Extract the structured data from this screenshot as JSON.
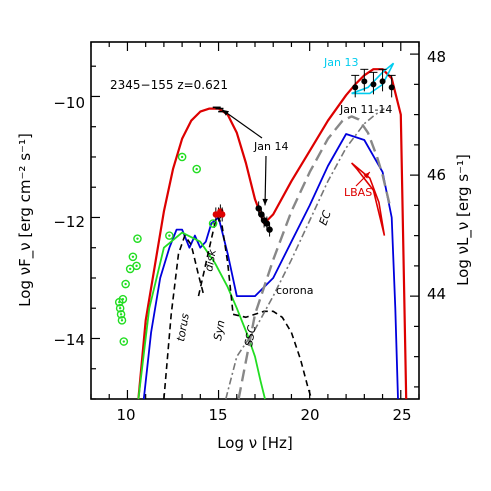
{
  "chart_data": {
    "type": "line",
    "source_label": "2345−155 z=0.621",
    "xlabel": "Log ν  [Hz]",
    "ylabel": "Log νF_ν  [erg cm⁻² s⁻¹]",
    "ylabel_right": "Log νL_ν  [erg s⁻¹]",
    "xlim": [
      8,
      26
    ],
    "ylim": [
      -15,
      -9.1
    ],
    "ylim_right": [
      42.3,
      48.2
    ],
    "x_ticks": [
      "10",
      "15",
      "20",
      "25"
    ],
    "y_ticks": [
      "−10",
      "−12",
      "−14"
    ],
    "y_ticks_right": [
      "48",
      "46",
      "44"
    ],
    "annotations": {
      "jan14": "Jan 14",
      "jan13": "Jan 13",
      "jan1114": "Jan 11-14",
      "lbas": "LBAS",
      "corona": "corona",
      "torus": "torus",
      "disk": "disk",
      "syn": "Syn",
      "ssc": "SSC",
      "ec": "EC"
    },
    "colors": {
      "total": "#dd0000",
      "model_blue": "#0000dd",
      "synchrotron": "#22dd22",
      "archival_points": "#22dd22",
      "jan13_bowtie": "#00ccee",
      "lbas_bowtie": "#dd0000",
      "component_dashed": "#000000",
      "ssc_dashdot": "#777777",
      "ec_dashed": "#888888"
    },
    "series": [
      {
        "style": "total",
        "x": [
          10.6,
          11.0,
          11.5,
          12.0,
          12.5,
          13.0,
          13.5,
          14.0,
          14.5,
          15.0,
          15.5,
          16.0,
          16.5,
          17.0,
          17.5,
          18.0,
          19.0,
          20.0,
          21.0,
          22.0,
          22.5,
          23.0,
          23.5,
          24.0,
          24.5,
          25.0,
          25.3
        ],
        "y": [
          -15.0,
          -13.7,
          -12.8,
          -11.9,
          -11.2,
          -10.7,
          -10.4,
          -10.25,
          -10.2,
          -10.2,
          -10.3,
          -10.6,
          -11.1,
          -11.7,
          -12.1,
          -11.95,
          -11.4,
          -10.9,
          -10.4,
          -9.98,
          -9.8,
          -9.65,
          -9.55,
          -9.55,
          -9.7,
          -10.3,
          -15.0
        ]
      },
      {
        "style": "model_blue",
        "x": [
          10.9,
          11.3,
          11.8,
          12.3,
          12.7,
          13.0,
          13.4,
          13.7,
          14.0,
          14.3,
          14.6,
          15.0,
          15.5,
          16.0,
          17.0,
          18.0,
          19.0,
          20.0,
          21.0,
          22.0,
          23.0,
          24.0,
          24.5,
          24.7,
          24.85
        ],
        "y": [
          -15.0,
          -13.9,
          -13.0,
          -12.5,
          -12.2,
          -12.2,
          -12.5,
          -12.3,
          -12.5,
          -12.4,
          -12.1,
          -12.0,
          -12.6,
          -13.3,
          -13.3,
          -13.0,
          -12.4,
          -11.8,
          -11.15,
          -10.62,
          -10.72,
          -11.25,
          -12.0,
          -13.5,
          -15.0
        ]
      },
      {
        "style": "synchrotron",
        "x": [
          10.6,
          11.2,
          12.0,
          13.0,
          14.0,
          14.8,
          15.5,
          16.0,
          16.6,
          17.0,
          17.3,
          17.55
        ],
        "y": [
          -15.0,
          -13.5,
          -12.5,
          -12.25,
          -12.4,
          -12.75,
          -13.15,
          -13.5,
          -13.95,
          -14.3,
          -14.7,
          -15.0
        ]
      },
      {
        "style": "component_dashed",
        "label_key": "torus",
        "x": [
          12.0,
          12.4,
          12.8,
          13.15,
          13.5,
          13.9,
          14.2
        ],
        "y": [
          -15.0,
          -13.6,
          -12.6,
          -12.3,
          -12.45,
          -12.95,
          -13.3
        ]
      },
      {
        "style": "component_dashed",
        "label_key": "disk",
        "x": [
          13.9,
          14.2,
          14.5,
          14.8,
          15.0,
          15.2,
          15.5,
          15.8
        ],
        "y": [
          -13.3,
          -12.9,
          -12.5,
          -12.1,
          -12.0,
          -12.15,
          -12.75,
          -13.6
        ]
      },
      {
        "style": "component_dashed",
        "label_key": "corona",
        "x": [
          15.8,
          16.5,
          17.0,
          17.5,
          18.0,
          18.5,
          19.0,
          19.5,
          19.9,
          20.1
        ],
        "y": [
          -13.6,
          -13.65,
          -13.6,
          -13.55,
          -13.55,
          -13.65,
          -13.9,
          -14.35,
          -14.8,
          -15.0
        ]
      },
      {
        "style": "ssc_dashdot",
        "label_key": "ssc",
        "x": [
          15.4,
          16.0,
          17.0,
          18.0,
          19.0,
          20.0,
          21.0,
          22.0,
          23.0,
          23.6,
          24.1
        ],
        "y": [
          -15.0,
          -14.3,
          -13.85,
          -13.3,
          -12.7,
          -12.05,
          -11.4,
          -10.85,
          -10.45,
          -10.3,
          -10.2
        ]
      },
      {
        "style": "ec_dashed",
        "label_key": "ec",
        "x": [
          16.1,
          17.0,
          18.0,
          19.0,
          20.0,
          21.0,
          21.8,
          22.3,
          22.7,
          23.2,
          23.7,
          24.0,
          24.4
        ],
        "y": [
          -15.0,
          -13.6,
          -12.7,
          -11.9,
          -11.25,
          -10.7,
          -10.4,
          -10.33,
          -10.38,
          -10.6,
          -11.0,
          -11.3,
          -11.8
        ]
      }
    ],
    "archival_points": {
      "x": [
        9.55,
        9.6,
        9.65,
        9.7,
        9.75,
        9.8,
        9.9,
        10.15,
        10.3,
        10.5,
        10.55,
        12.3,
        13.0,
        13.8,
        14.7
      ],
      "y": [
        -13.4,
        -13.5,
        -13.6,
        -13.7,
        -13.35,
        -14.05,
        -13.1,
        -12.85,
        -12.65,
        -12.8,
        -12.35,
        -12.3,
        -11.0,
        -11.2,
        -12.1
      ]
    },
    "jan14_points": {
      "x": [
        14.85,
        15.0,
        15.1,
        15.2,
        17.2,
        17.35,
        17.5,
        17.65,
        17.8
      ],
      "y": [
        -11.95,
        -11.95,
        -11.9,
        -11.95,
        -11.85,
        -11.95,
        -12.05,
        -12.1,
        -12.2
      ]
    },
    "uv_points": {
      "x": [
        14.9,
        15.05,
        15.2
      ],
      "y": [
        -10.18,
        -10.2,
        -10.25
      ]
    },
    "gamma_points": {
      "x": [
        22.5,
        23.0,
        23.5,
        24.0,
        24.5
      ],
      "y": [
        -9.85,
        -9.75,
        -9.8,
        -9.75,
        -9.85
      ]
    },
    "bowtie_jan13": {
      "x": [
        22.3,
        23.2,
        24.0,
        24.6,
        24.0,
        23.3,
        22.3
      ],
      "y": [
        -9.95,
        -9.85,
        -9.6,
        -9.45,
        -9.8,
        -9.95,
        -9.95
      ]
    },
    "bowtie_lbas": {
      "x": [
        22.3,
        23.3,
        23.8,
        24.1,
        23.5,
        22.6,
        22.3
      ],
      "y": [
        -11.1,
        -11.35,
        -11.75,
        -12.3,
        -11.55,
        -11.2,
        -11.1
      ]
    }
  }
}
